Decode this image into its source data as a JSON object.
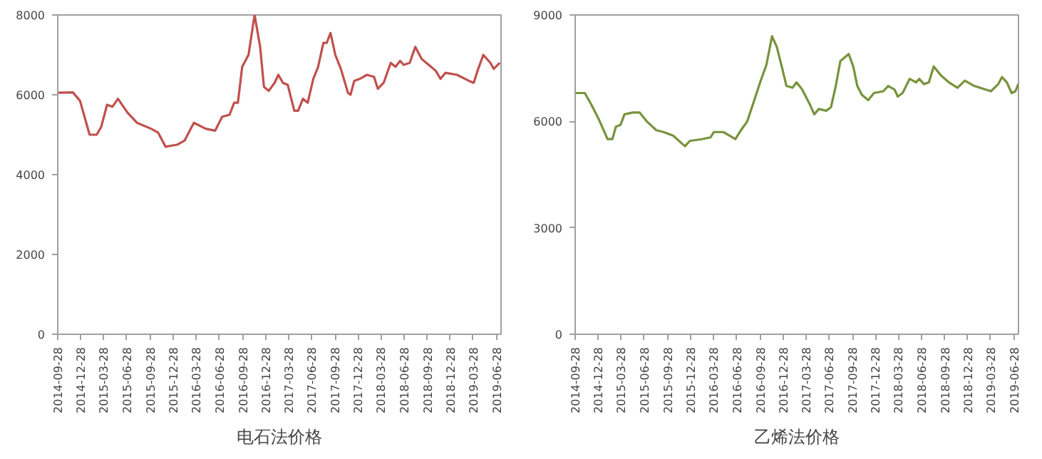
{
  "chart_data": [
    {
      "type": "line",
      "title": "电石法价格",
      "ylim": [
        0,
        8000
      ],
      "yticks": [
        0,
        2000,
        4000,
        6000,
        8000
      ],
      "xlim": [
        "2014-09-28",
        "2019-07-16"
      ],
      "xticks": [
        "2014-09-28",
        "2014-12-28",
        "2015-03-28",
        "2015-06-28",
        "2015-09-28",
        "2015-12-28",
        "2016-03-28",
        "2016-06-28",
        "2016-09-28",
        "2016-12-28",
        "2017-03-28",
        "2017-06-28",
        "2017-09-28",
        "2017-12-28",
        "2018-03-28",
        "2018-06-28",
        "2018-09-28",
        "2018-12-28",
        "2019-03-28",
        "2019-06-28"
      ],
      "grid": false,
      "series": [
        {
          "color": "#c0504d",
          "x": [
            "2014-09-28",
            "2014-11-27",
            "2014-12-25",
            "2015-02-01",
            "2015-03-01",
            "2015-03-19",
            "2015-04-11",
            "2015-05-02",
            "2015-05-24",
            "2015-07-01",
            "2015-08-07",
            "2015-10-02",
            "2015-10-30",
            "2015-11-28",
            "2016-01-13",
            "2016-02-11",
            "2016-03-19",
            "2016-05-05",
            "2016-06-11",
            "2016-07-09",
            "2016-08-07",
            "2016-08-25",
            "2016-09-09",
            "2016-09-26",
            "2016-10-21",
            "2016-11-14",
            "2016-12-06",
            "2016-12-21",
            "2017-01-09",
            "2017-02-01",
            "2017-02-16",
            "2017-03-06",
            "2017-03-25",
            "2017-04-20",
            "2017-05-05",
            "2017-05-24",
            "2017-06-12",
            "2017-07-04",
            "2017-07-23",
            "2017-08-13",
            "2017-08-26",
            "2017-09-10",
            "2017-09-29",
            "2017-10-21",
            "2017-11-18",
            "2017-11-28",
            "2017-12-13",
            "2018-01-04",
            "2018-02-01",
            "2018-03-01",
            "2018-03-16",
            "2018-04-08",
            "2018-05-06",
            "2018-05-25",
            "2018-06-12",
            "2018-06-26",
            "2018-07-20",
            "2018-08-11",
            "2018-09-05",
            "2018-10-03",
            "2018-10-31",
            "2018-11-19",
            "2018-12-08",
            "2019-01-23",
            "2019-03-11",
            "2019-03-30",
            "2019-04-14",
            "2019-05-07",
            "2019-06-04",
            "2019-06-17",
            "2019-07-11"
          ],
          "values": [
            6050,
            6060,
            5850,
            5000,
            5000,
            5200,
            5750,
            5700,
            5900,
            5550,
            5300,
            5150,
            5050,
            4700,
            4750,
            4850,
            5300,
            5150,
            5100,
            5450,
            5500,
            5800,
            5800,
            6700,
            7000,
            8000,
            7200,
            6200,
            6100,
            6300,
            6500,
            6300,
            6250,
            5600,
            5600,
            5900,
            5800,
            6400,
            6700,
            7300,
            7300,
            7550,
            7000,
            6650,
            6050,
            6000,
            6350,
            6400,
            6500,
            6450,
            6150,
            6300,
            6800,
            6700,
            6850,
            6750,
            6800,
            7200,
            6900,
            6750,
            6600,
            6400,
            6550,
            6500,
            6350,
            6300,
            6600,
            7000,
            6800,
            6650,
            6800
          ]
        }
      ]
    },
    {
      "type": "line",
      "title": "乙烯法价格",
      "ylim": [
        0,
        9000
      ],
      "yticks": [
        0,
        3000,
        6000,
        9000
      ],
      "xlim": [
        "2014-09-28",
        "2019-07-16"
      ],
      "xticks": [
        "2014-09-28",
        "2014-12-28",
        "2015-03-28",
        "2015-06-28",
        "2015-09-28",
        "2015-12-28",
        "2016-03-28",
        "2016-06-28",
        "2016-09-28",
        "2016-12-28",
        "2017-03-28",
        "2017-06-28",
        "2017-09-28",
        "2017-12-28",
        "2018-03-28",
        "2018-06-28",
        "2018-09-28",
        "2018-12-28",
        "2019-03-28",
        "2019-06-28"
      ],
      "grid": false,
      "series": [
        {
          "color": "#77933c",
          "x": [
            "2014-09-28",
            "2014-11-05",
            "2014-11-29",
            "2014-12-31",
            "2015-02-03",
            "2015-02-22",
            "2015-03-08",
            "2015-03-26",
            "2015-04-11",
            "2015-05-13",
            "2015-06-10",
            "2015-07-08",
            "2015-08-15",
            "2015-09-12",
            "2015-10-20",
            "2015-12-06",
            "2015-12-25",
            "2016-02-11",
            "2016-03-16",
            "2016-03-29",
            "2016-05-06",
            "2016-06-22",
            "2016-07-14",
            "2016-08-08",
            "2016-09-05",
            "2016-09-28",
            "2016-10-23",
            "2016-11-14",
            "2016-12-03",
            "2016-12-24",
            "2017-01-10",
            "2017-02-03",
            "2017-02-19",
            "2017-03-13",
            "2017-04-11",
            "2017-04-30",
            "2017-05-18",
            "2017-06-16",
            "2017-07-05",
            "2017-07-24",
            "2017-08-11",
            "2017-09-13",
            "2017-10-01",
            "2017-10-17",
            "2017-11-04",
            "2017-11-29",
            "2017-12-22",
            "2018-01-28",
            "2018-02-16",
            "2018-03-13",
            "2018-03-26",
            "2018-04-14",
            "2018-05-12",
            "2018-06-06",
            "2018-06-19",
            "2018-07-08",
            "2018-07-27",
            "2018-08-15",
            "2018-09-12",
            "2018-10-14",
            "2018-11-17",
            "2018-12-16",
            "2019-01-22",
            "2019-03-29",
            "2019-04-27",
            "2019-05-12",
            "2019-05-31",
            "2019-06-19",
            "2019-07-04",
            "2019-07-15"
          ],
          "values": [
            6800,
            6800,
            6500,
            6050,
            5500,
            5500,
            5850,
            5900,
            6200,
            6250,
            6250,
            6000,
            5750,
            5700,
            5600,
            5300,
            5450,
            5500,
            5550,
            5700,
            5700,
            5500,
            5750,
            6000,
            6600,
            7100,
            7600,
            8400,
            8100,
            7500,
            7000,
            6950,
            7100,
            6900,
            6500,
            6200,
            6350,
            6300,
            6400,
            7000,
            7700,
            7900,
            7550,
            7000,
            6750,
            6600,
            6800,
            6850,
            7000,
            6900,
            6700,
            6800,
            7200,
            7100,
            7200,
            7050,
            7100,
            7550,
            7300,
            7100,
            6950,
            7150,
            7000,
            6850,
            7050,
            7250,
            7100,
            6800,
            6850,
            7050
          ]
        }
      ]
    }
  ]
}
